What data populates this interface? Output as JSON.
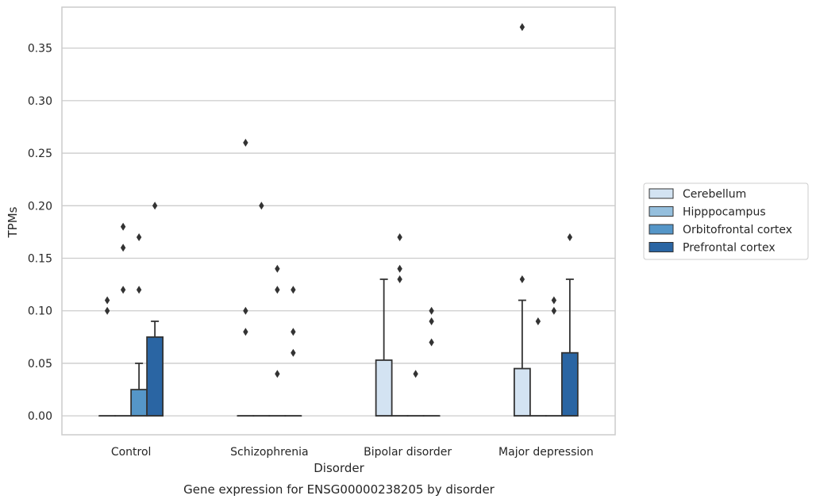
{
  "chart_data": {
    "type": "box",
    "caption": "Gene expression for ENSG00000238205 by disorder",
    "xlabel": "Disorder",
    "ylabel": "TPMs",
    "ylim": [
      -0.018,
      0.389
    ],
    "yticks": [
      "0.00",
      "0.05",
      "0.10",
      "0.15",
      "0.20",
      "0.25",
      "0.30",
      "0.35"
    ],
    "categories": [
      "Control",
      "Schizophrenia",
      "Bipolar disorder",
      "Major depression"
    ],
    "grid": "horizontal",
    "legend_position": "right",
    "colors": {
      "Cerebellum": "#d3e3f2",
      "Hipppocampus": "#95bfdd",
      "Orbitofrontal cortex": "#5596c8",
      "Prefrontal cortex": "#2a65a3",
      "outline": "#333333",
      "grid": "#cccccc",
      "frame": "#cccccc"
    },
    "series": [
      {
        "name": "Cerebellum",
        "boxes": [
          {
            "q1": 0,
            "median": 0,
            "q3": 0,
            "whisker_low": 0,
            "whisker_high": 0,
            "outliers": [
              0.1,
              0.11
            ]
          },
          {
            "q1": 0,
            "median": 0,
            "q3": 0,
            "whisker_low": 0,
            "whisker_high": 0,
            "outliers": [
              0.08,
              0.1,
              0.26
            ]
          },
          {
            "q1": 0,
            "median": 0,
            "q3": 0.053,
            "whisker_low": 0,
            "whisker_high": 0.13,
            "outliers": []
          },
          {
            "q1": 0,
            "median": 0,
            "q3": 0.045,
            "whisker_low": 0,
            "whisker_high": 0.11,
            "outliers": [
              0.13,
              0.37
            ]
          }
        ]
      },
      {
        "name": "Hipppocampus",
        "boxes": [
          {
            "q1": 0,
            "median": 0,
            "q3": 0,
            "whisker_low": 0,
            "whisker_high": 0,
            "outliers": [
              0.12,
              0.16,
              0.18
            ]
          },
          {
            "q1": 0,
            "median": 0,
            "q3": 0,
            "whisker_low": 0,
            "whisker_high": 0,
            "outliers": [
              0.2
            ]
          },
          {
            "q1": 0,
            "median": 0,
            "q3": 0,
            "whisker_low": 0,
            "whisker_high": 0,
            "outliers": [
              0.13,
              0.14,
              0.17
            ]
          },
          {
            "q1": 0,
            "median": 0,
            "q3": 0,
            "whisker_low": 0,
            "whisker_high": 0,
            "outliers": [
              0.09
            ]
          }
        ]
      },
      {
        "name": "Orbitofrontal cortex",
        "boxes": [
          {
            "q1": 0,
            "median": 0,
            "q3": 0.025,
            "whisker_low": 0,
            "whisker_high": 0.05,
            "outliers": [
              0.12,
              0.17
            ]
          },
          {
            "q1": 0,
            "median": 0,
            "q3": 0,
            "whisker_low": 0,
            "whisker_high": 0,
            "outliers": [
              0.04,
              0.12,
              0.14
            ]
          },
          {
            "q1": 0,
            "median": 0,
            "q3": 0,
            "whisker_low": 0,
            "whisker_high": 0,
            "outliers": [
              0.04
            ]
          },
          {
            "q1": 0,
            "median": 0,
            "q3": 0,
            "whisker_low": 0,
            "whisker_high": 0,
            "outliers": [
              0.1,
              0.11
            ]
          }
        ]
      },
      {
        "name": "Prefrontal cortex",
        "boxes": [
          {
            "q1": 0,
            "median": 0,
            "q3": 0.075,
            "whisker_low": 0,
            "whisker_high": 0.09,
            "outliers": [
              0.2
            ]
          },
          {
            "q1": 0,
            "median": 0,
            "q3": 0,
            "whisker_low": 0,
            "whisker_high": 0,
            "outliers": [
              0.06,
              0.08,
              0.12
            ]
          },
          {
            "q1": 0,
            "median": 0,
            "q3": 0,
            "whisker_low": 0,
            "whisker_high": 0,
            "outliers": [
              0.07,
              0.09,
              0.1
            ]
          },
          {
            "q1": 0,
            "median": 0,
            "q3": 0.06,
            "whisker_low": 0,
            "whisker_high": 0.13,
            "outliers": [
              0.17
            ]
          }
        ]
      }
    ]
  }
}
